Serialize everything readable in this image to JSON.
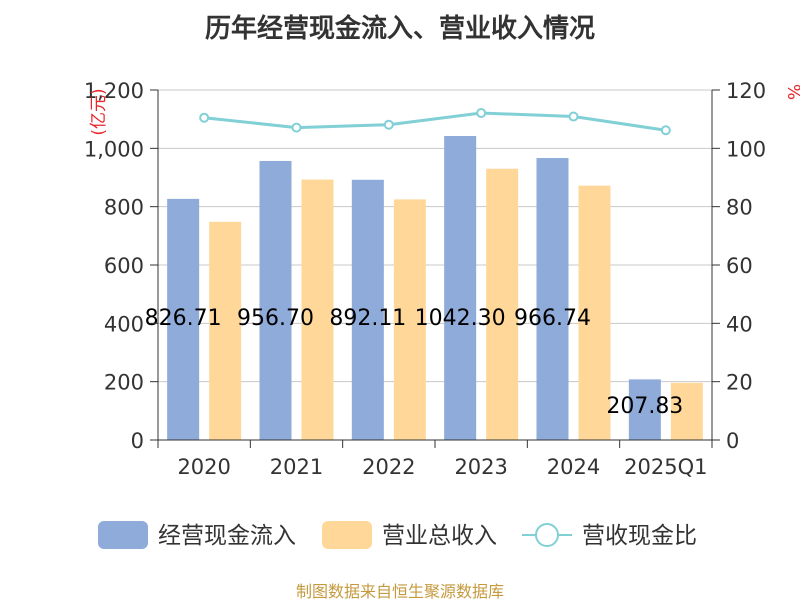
{
  "title": "历年经营现金流入、营业收入情况",
  "source": "制图数据来自恒生聚源数据库",
  "chart_data": {
    "type": "bar",
    "categories": [
      "2020",
      "2021",
      "2022",
      "2023",
      "2024",
      "2025Q1"
    ],
    "series": [
      {
        "name": "经营现金流入",
        "type": "bar",
        "axis": "left",
        "color": "#8eabd9",
        "values": [
          826.71,
          956.7,
          892.11,
          1042.3,
          966.74,
          207.83
        ]
      },
      {
        "name": "营业总收入",
        "type": "bar",
        "axis": "left",
        "color": "#ffd899",
        "values": [
          748,
          893,
          825,
          930,
          872,
          196
        ]
      },
      {
        "name": "营收现金比",
        "type": "line",
        "axis": "right",
        "color": "#80d0d6",
        "values": [
          110.5,
          107.1,
          108.1,
          112.1,
          110.9,
          106.2
        ]
      }
    ],
    "data_labels": [
      "826.71",
      "956.70",
      "892.11",
      "1042.30",
      "966.74",
      "207.83"
    ],
    "left_axis": {
      "unit": "(亿元)",
      "ylim": [
        0,
        1200
      ],
      "ticks": [
        "0",
        "200",
        "400",
        "600",
        "800",
        "1,000",
        "1,200"
      ]
    },
    "right_axis": {
      "unit": "%",
      "ylim": [
        0,
        120
      ],
      "ticks": [
        "0",
        "20",
        "40",
        "60",
        "80",
        "100",
        "120"
      ]
    },
    "grid": true,
    "legend_position": "bottom"
  }
}
